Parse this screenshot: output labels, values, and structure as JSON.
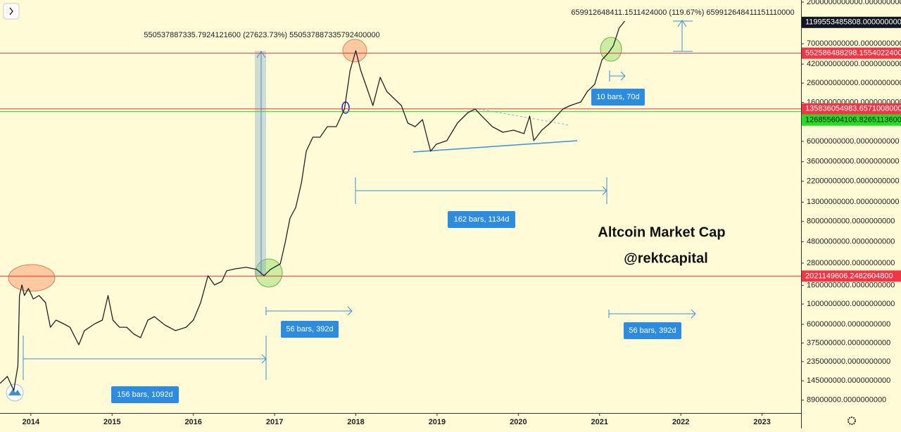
{
  "chart_data": {
    "type": "line",
    "title": "Altcoin Market Cap",
    "subtitle": "@rektcapital",
    "log_y": true,
    "xlim": [
      2013.62,
      2023.48
    ],
    "ylim": [
      64400000,
      2107000000000
    ],
    "xticks": [
      2014,
      2015,
      2016,
      2017,
      2018,
      2019,
      2020,
      2021,
      2022,
      2023
    ],
    "yticks": [
      {
        "value": 2000000000000,
        "label": "2000000000000.0000000000"
      },
      {
        "value": 700000000000,
        "label": "700000000000.0000000000"
      },
      {
        "value": 420000000000,
        "label": "420000000000.0000000000"
      },
      {
        "value": 260000000000,
        "label": "260000000000.0000000000"
      },
      {
        "value": 160000000000,
        "label": "160000000000.0000000000"
      },
      {
        "value": 60000000000,
        "label": "60000000000.0000000000"
      },
      {
        "value": 36000000000,
        "label": "36000000000.0000000000"
      },
      {
        "value": 22000000000,
        "label": "22000000000.0000000000"
      },
      {
        "value": 13000000000,
        "label": "13000000000.0000000000"
      },
      {
        "value": 8000000000,
        "label": "8000000000.0000000000"
      },
      {
        "value": 4800000000,
        "label": "4800000000.0000000000"
      },
      {
        "value": 2800000000,
        "label": "2800000000.0000000000"
      },
      {
        "value": 1600000000,
        "label": "1600000000.0000000000"
      },
      {
        "value": 1000000000,
        "label": "1000000000.0000000000"
      },
      {
        "value": 600000000,
        "label": "600000000.0000000000"
      },
      {
        "value": 375000000,
        "label": "375000000.0000000000"
      },
      {
        "value": 235000000,
        "label": "235000000.0000000000"
      },
      {
        "value": 145000000,
        "label": "145000000.0000000000"
      },
      {
        "value": 89000000,
        "label": "89000000.0000000000"
      }
    ],
    "price_lines": [
      {
        "value": 1199553485808,
        "label": "1199553485808.0000000000",
        "color": "#131722"
      },
      {
        "value": 552586488298.1554,
        "label": "552586488298.1554022400",
        "color": "#f23645"
      },
      {
        "value": 135836054983.6571,
        "label": "135836054983.6571008000",
        "color": "#f23645"
      },
      {
        "value": 126855604106.8265,
        "label": "126855604106.8265113600",
        "color": "#22dd22"
      },
      {
        "value": 2021149606.2482605,
        "label": "2021149606.2482604800",
        "color": "#f23645"
      }
    ],
    "measures": [
      "550537887335.7924121600 (27623.73%) 550537887335792400000",
      "659912648411.1511424000 (119.67%) 659912648411151110000"
    ],
    "ranges": [
      "156 bars, 1092d",
      "56 bars, 392d",
      "162 bars, 1134d",
      "56 bars, 392d",
      "10 bars, 70d"
    ],
    "x": [
      2013.62,
      2013.71,
      2013.79,
      2013.84,
      2013.86,
      2013.89,
      2013.92,
      2013.97,
      2014.03,
      2014.1,
      2014.18,
      2014.24,
      2014.31,
      2014.4,
      2014.48,
      2014.59,
      2014.66,
      2014.79,
      2014.88,
      2014.95,
      2015.01,
      2015.09,
      2015.18,
      2015.27,
      2015.35,
      2015.44,
      2015.52,
      2015.65,
      2015.78,
      2015.91,
      2016.0,
      2016.09,
      2016.18,
      2016.26,
      2016.35,
      2016.41,
      2016.52,
      2016.65,
      2016.78,
      2016.87,
      2016.95,
      2017.07,
      2017.13,
      2017.19,
      2017.26,
      2017.33,
      2017.39,
      2017.47,
      2017.56,
      2017.65,
      2017.76,
      2017.82,
      2017.86,
      2017.93,
      2018.0,
      2018.06,
      2018.12,
      2018.21,
      2018.3,
      2018.38,
      2018.47,
      2018.56,
      2018.64,
      2018.73,
      2018.82,
      2018.92,
      2018.99,
      2019.12,
      2019.25,
      2019.38,
      2019.47,
      2019.55,
      2019.68,
      2019.81,
      2019.94,
      2020.07,
      2020.14,
      2020.19,
      2020.29,
      2020.39,
      2020.55,
      2020.64,
      2020.77,
      2020.85,
      2020.94,
      2021.03,
      2021.11,
      2021.17,
      2021.24,
      2021.31
    ],
    "series": [
      {
        "color": "#222222",
        "values": [
          135500000,
          161800000,
          113500000,
          211000000,
          1239000000,
          1618000000,
          1239000000,
          1479000000,
          1135000000,
          1239000000,
          1038000000,
          558000000,
          667000000,
          611000000,
          558000000,
          359000000,
          512000000,
          611000000,
          667000000,
          1239000000,
          667000000,
          558000000,
          558000000,
          468000000,
          429000000,
          667000000,
          729000000,
          589000000,
          512000000,
          558000000,
          667000000,
          1038000000,
          2040000000,
          1618000000,
          1766000000,
          2310000000,
          2430000000,
          2520000000,
          2390000000,
          2040000000,
          2390000000,
          2750000000,
          4680000000,
          8690000000,
          11350000000,
          21100000000,
          46800000000,
          66700000000,
          66700000000,
          86900000000,
          86900000000,
          113500000000,
          135500000000,
          359000000000,
          589000000000,
          359000000000,
          252000000000,
          147900000000,
          301000000000,
          211000000000,
          176600000000,
          147900000000,
          95000000000,
          86900000000,
          103800000000,
          46800000000,
          55800000000,
          61100000000,
          95000000000,
          123900000000,
          135500000000,
          113500000000,
          86900000000,
          75500000000,
          79600000000,
          72900000000,
          113500000000,
          61100000000,
          79600000000,
          95000000000,
          135500000000,
          147900000000,
          161800000000,
          211000000000,
          252000000000,
          468000000000,
          558000000000,
          667000000000,
          1038000000000,
          1239000000000
        ]
      }
    ]
  }
}
